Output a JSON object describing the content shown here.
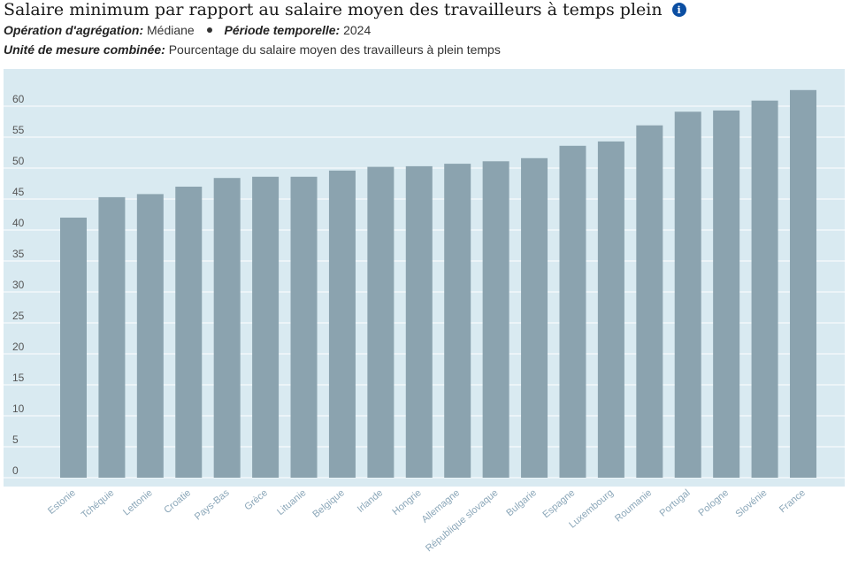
{
  "header": {
    "title": "Salaire minimum par rapport au salaire moyen des travailleurs à temps plein",
    "info_icon": "info-icon",
    "aggregation_label": "Opération d'agrégation:",
    "aggregation_value": "Médiane",
    "period_label": "Période temporelle:",
    "period_value": "2024",
    "unit_label": "Unité de mesure combinée:",
    "unit_value": "Pourcentage du salaire moyen des travailleurs à plein temps"
  },
  "colors": {
    "plot_bg": "#d9eaf1",
    "bar": "#8ba3af",
    "grid": "#ffffff",
    "tick_text": "#555555",
    "category_text": "#8aa6b8",
    "info_icon": "#0b4ea2"
  },
  "chart_data": {
    "type": "bar",
    "categories": [
      "Estonie",
      "Tchéquie",
      "Lettonie",
      "Croatie",
      "Pays-Bas",
      "Grèce",
      "Lituanie",
      "Belgique",
      "Irlande",
      "Hongrie",
      "Allemagne",
      "République slovaque",
      "Bulgarie",
      "Espagne",
      "Luxembourg",
      "Roumanie",
      "Portugal",
      "Pologne",
      "Slovénie",
      "France"
    ],
    "values": [
      42.0,
      45.3,
      45.8,
      47.0,
      48.4,
      48.6,
      48.6,
      49.6,
      50.2,
      50.3,
      50.7,
      51.1,
      51.6,
      53.6,
      54.3,
      56.9,
      59.1,
      59.3,
      60.9,
      62.6
    ],
    "yticks": [
      0,
      5,
      10,
      15,
      20,
      25,
      30,
      35,
      40,
      45,
      50,
      55,
      60
    ],
    "ylim": [
      0,
      65
    ],
    "grid": true,
    "legend": "none"
  }
}
